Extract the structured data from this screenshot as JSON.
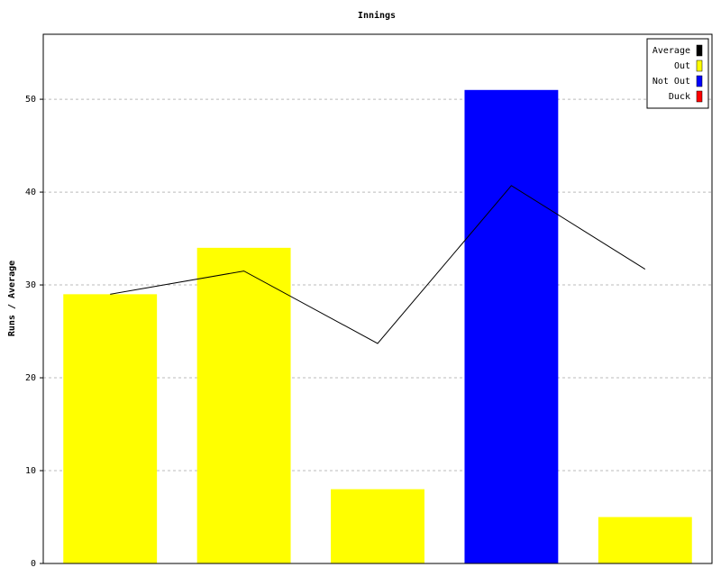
{
  "chart_data": {
    "type": "bar",
    "title": "Innings",
    "y_label": "Runs / Average",
    "categories": [
      null,
      null,
      null,
      null,
      null
    ],
    "series": [
      {
        "name": "Average",
        "color": "#000000",
        "type": "line",
        "values": [
          29,
          31.5,
          23.7,
          40.7,
          31.7
        ]
      },
      {
        "name": "Out",
        "color": "#ffff00",
        "values": [
          29,
          34,
          8,
          null,
          5
        ]
      },
      {
        "name": "Not Out",
        "color": "#0000ff",
        "values": [
          null,
          null,
          null,
          51,
          null
        ]
      },
      {
        "name": "Duck",
        "color": "#ff0000",
        "values": [
          null,
          null,
          null,
          null,
          null
        ]
      }
    ],
    "ylim": [
      0,
      57
    ],
    "yticks": [
      0,
      10,
      20,
      30,
      40,
      50
    ],
    "grid": true,
    "legend": "top-right"
  }
}
